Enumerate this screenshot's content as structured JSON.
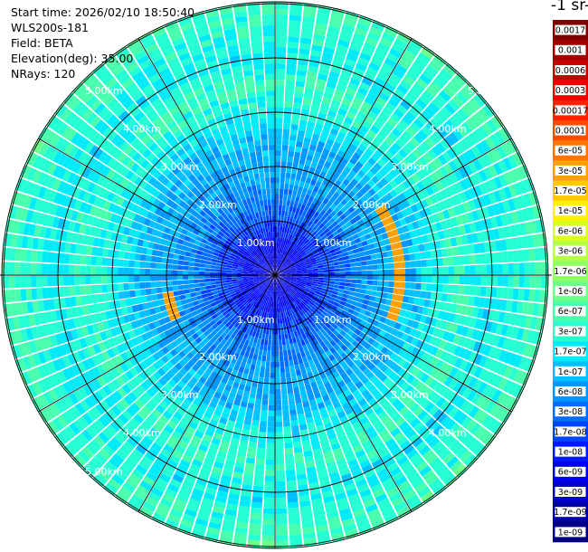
{
  "info": {
    "start_time": "Start time: 2026/02/10 18:50:40",
    "instrument": "WLS200s-181",
    "field": "Field: BETA",
    "elevation": "Elevation(deg): 35.00",
    "nrays": "NRays: 120"
  },
  "colorbar": {
    "title_visible": "-1 sr-",
    "labels": [
      "0.0017",
      "0.001",
      "0.0006",
      "0.0003",
      "0.00017",
      "0.0001",
      "6e-05",
      "3e-05",
      "1.7e-05",
      "1e-05",
      "6e-06",
      "3e-06",
      "1.7e-06",
      "1e-06",
      "6e-07",
      "3e-07",
      "1.7e-07",
      "1e-07",
      "6e-08",
      "3e-08",
      "1.7e-08",
      "1e-08",
      "6e-09",
      "3e-09",
      "1.7e-09",
      "1e-09"
    ],
    "colors": [
      "#7f0000",
      "#a30000",
      "#c90000",
      "#ee0000",
      "#ff2200",
      "#ff4b00",
      "#ff7500",
      "#ff9f00",
      "#ffc800",
      "#fff100",
      "#dbff1c",
      "#b6ff41",
      "#92ff65",
      "#6dff8a",
      "#49ffae",
      "#24ffd3",
      "#00eaf7",
      "#00c0ff",
      "#0096ff",
      "#006cff",
      "#0042ff",
      "#0018ff",
      "#0000f1",
      "#0000cc",
      "#0000a8",
      "#000080"
    ]
  },
  "range_labels": {
    "r1": "1.00km",
    "r2": "2.00km",
    "r3": "3.00km",
    "r4": "4.00km",
    "r5": "5.00km"
  },
  "chart_data": {
    "type": "heatmap",
    "projection": "polar (PPI scan)",
    "field": "BETA",
    "elevation_deg": 35.0,
    "n_rays": 120,
    "range_rings_km": [
      1,
      2,
      3,
      4,
      5
    ],
    "colorscale_log10_range": [
      -9,
      -2.77
    ],
    "radial_profile_log10": [
      {
        "range_km": 0.0,
        "value": -8.3
      },
      {
        "range_km": 0.5,
        "value": -8.1
      },
      {
        "range_km": 1.0,
        "value": -7.7
      },
      {
        "range_km": 1.5,
        "value": -7.3
      },
      {
        "range_km": 2.0,
        "value": -7.1
      },
      {
        "range_km": 2.5,
        "value": -7.0
      },
      {
        "range_km": 3.0,
        "value": -6.6
      },
      {
        "range_km": 3.5,
        "value": -6.4
      },
      {
        "range_km": 4.0,
        "value": -6.7
      },
      {
        "range_km": 4.5,
        "value": -6.5
      },
      {
        "range_km": 5.0,
        "value": -6.3
      },
      {
        "range_km": 5.5,
        "value": -6.6
      },
      {
        "range_km": 6.0,
        "value": -6.8
      }
    ],
    "features": [
      {
        "desc": "arc of enhanced backscatter",
        "range_km": 2.3,
        "azimuth_deg_from": 55,
        "azimuth_deg_to": 110,
        "value": "3e-05"
      },
      {
        "desc": "blob of enhanced backscatter",
        "range_km": 2.0,
        "azimuth_deg_from": 245,
        "azimuth_deg_to": 258,
        "value": "3e-05"
      }
    ]
  }
}
